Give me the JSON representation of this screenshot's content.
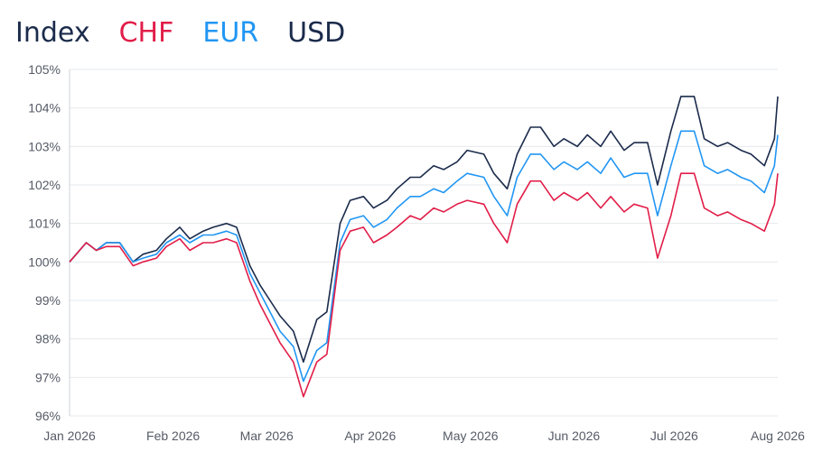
{
  "legend": {
    "index_label": "Index",
    "items": [
      {
        "label": "CHF",
        "color": "#e11d48"
      },
      {
        "label": "EUR",
        "color": "#2196f3"
      },
      {
        "label": "USD",
        "color": "#1b2b4b"
      }
    ]
  },
  "chart_data": {
    "type": "line",
    "title": "",
    "xlabel": "",
    "ylabel": "",
    "legend_position": "top-left",
    "grid": "horizontal",
    "ylim": [
      96,
      105
    ],
    "xlim": [
      "2026-01-01",
      "2026-08-01"
    ],
    "y_ticks": [
      "105%",
      "104%",
      "103%",
      "102%",
      "101%",
      "100%",
      "99%",
      "98%",
      "97%",
      "96%"
    ],
    "y_tick_values": [
      105,
      104,
      103,
      102,
      101,
      100,
      99,
      98,
      97,
      96
    ],
    "x_ticks": [
      "Jan 2026",
      "Feb 2026",
      "Mar 2026",
      "Apr 2026",
      "May 2026",
      "Jun 2026",
      "Jul 2026",
      "Aug 2026"
    ],
    "x_tick_dates": [
      "2026-01-01",
      "2026-02-01",
      "2026-03-01",
      "2026-04-01",
      "2026-05-01",
      "2026-06-01",
      "2026-07-01",
      "2026-08-01"
    ],
    "x": [
      "2026-01-01",
      "2026-01-06",
      "2026-01-09",
      "2026-01-12",
      "2026-01-16",
      "2026-01-20",
      "2026-01-23",
      "2026-01-27",
      "2026-01-30",
      "2026-02-03",
      "2026-02-06",
      "2026-02-10",
      "2026-02-13",
      "2026-02-17",
      "2026-02-20",
      "2026-02-24",
      "2026-02-27",
      "2026-03-02",
      "2026-03-05",
      "2026-03-09",
      "2026-03-12",
      "2026-03-16",
      "2026-03-19",
      "2026-03-23",
      "2026-03-26",
      "2026-03-30",
      "2026-04-02",
      "2026-04-06",
      "2026-04-09",
      "2026-04-13",
      "2026-04-16",
      "2026-04-20",
      "2026-04-23",
      "2026-04-27",
      "2026-04-30",
      "2026-05-05",
      "2026-05-08",
      "2026-05-12",
      "2026-05-15",
      "2026-05-19",
      "2026-05-22",
      "2026-05-26",
      "2026-05-29",
      "2026-06-02",
      "2026-06-05",
      "2026-06-09",
      "2026-06-12",
      "2026-06-16",
      "2026-06-19",
      "2026-06-23",
      "2026-06-26",
      "2026-06-30",
      "2026-07-03",
      "2026-07-07",
      "2026-07-10",
      "2026-07-14",
      "2026-07-17",
      "2026-07-21",
      "2026-07-24",
      "2026-07-28",
      "2026-07-31",
      "2026-08-01"
    ],
    "series": [
      {
        "name": "USD",
        "color": "#1b2b4b",
        "values": [
          100.0,
          100.5,
          100.3,
          100.5,
          100.5,
          100.0,
          100.2,
          100.3,
          100.6,
          100.9,
          100.6,
          100.8,
          100.9,
          101.0,
          100.9,
          99.9,
          99.4,
          99.0,
          98.6,
          98.2,
          97.4,
          98.5,
          98.7,
          101.0,
          101.6,
          101.7,
          101.4,
          101.6,
          101.9,
          102.2,
          102.2,
          102.5,
          102.4,
          102.6,
          102.9,
          102.8,
          102.3,
          101.9,
          102.8,
          103.5,
          103.5,
          103.0,
          103.2,
          103.0,
          103.3,
          103.0,
          103.4,
          102.9,
          103.1,
          103.1,
          102.0,
          103.4,
          104.3,
          104.3,
          103.2,
          103.0,
          103.1,
          102.9,
          102.8,
          102.5,
          103.2,
          104.3
        ]
      },
      {
        "name": "EUR",
        "color": "#2196f3",
        "values": [
          100.0,
          100.5,
          100.3,
          100.5,
          100.5,
          100.0,
          100.1,
          100.2,
          100.5,
          100.7,
          100.5,
          100.7,
          100.7,
          100.8,
          100.7,
          99.7,
          99.2,
          98.7,
          98.2,
          97.8,
          96.9,
          97.7,
          97.9,
          100.5,
          101.1,
          101.2,
          100.9,
          101.1,
          101.4,
          101.7,
          101.7,
          101.9,
          101.8,
          102.1,
          102.3,
          102.2,
          101.7,
          101.2,
          102.2,
          102.8,
          102.8,
          102.4,
          102.6,
          102.4,
          102.6,
          102.3,
          102.7,
          102.2,
          102.3,
          102.3,
          101.2,
          102.5,
          103.4,
          103.4,
          102.5,
          102.3,
          102.4,
          102.2,
          102.1,
          101.8,
          102.5,
          103.3
        ]
      },
      {
        "name": "CHF",
        "color": "#e11d48",
        "values": [
          100.0,
          100.5,
          100.3,
          100.4,
          100.4,
          99.9,
          100.0,
          100.1,
          100.4,
          100.6,
          100.3,
          100.5,
          100.5,
          100.6,
          100.5,
          99.5,
          98.9,
          98.4,
          97.9,
          97.4,
          96.5,
          97.4,
          97.6,
          100.3,
          100.8,
          100.9,
          100.5,
          100.7,
          100.9,
          101.2,
          101.1,
          101.4,
          101.3,
          101.5,
          101.6,
          101.5,
          101.0,
          100.5,
          101.5,
          102.1,
          102.1,
          101.6,
          101.8,
          101.6,
          101.8,
          101.4,
          101.7,
          101.3,
          101.5,
          101.4,
          100.1,
          101.2,
          102.3,
          102.3,
          101.4,
          101.2,
          101.3,
          101.1,
          101.0,
          100.8,
          101.5,
          102.3
        ]
      }
    ]
  }
}
